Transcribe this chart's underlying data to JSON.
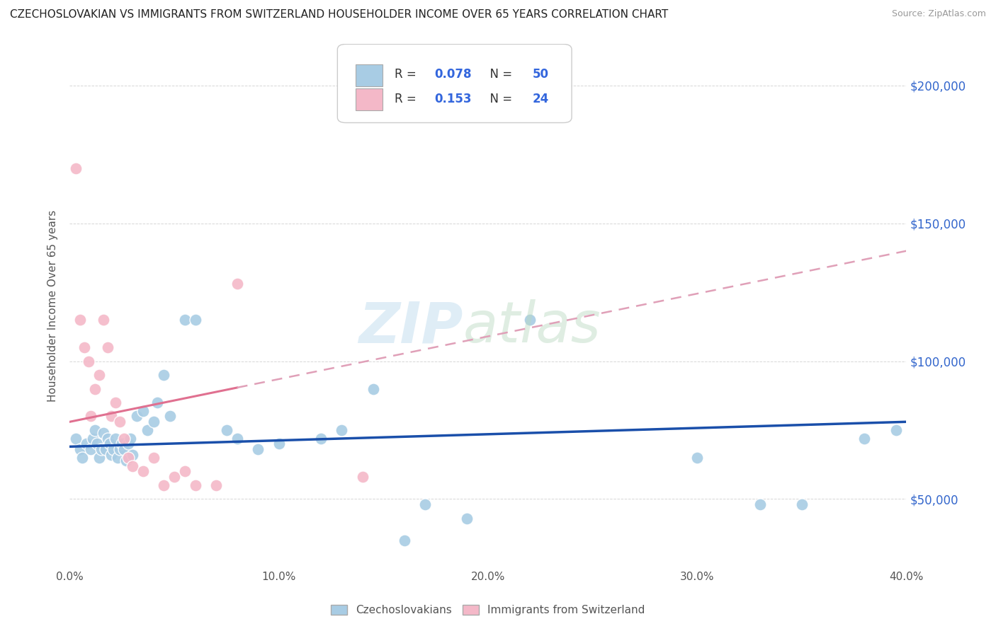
{
  "title": "CZECHOSLOVAKIAN VS IMMIGRANTS FROM SWITZERLAND HOUSEHOLDER INCOME OVER 65 YEARS CORRELATION CHART",
  "source": "Source: ZipAtlas.com",
  "ylabel": "Householder Income Over 65 years",
  "watermark_zip": "ZIP",
  "watermark_atlas": "atlas",
  "legend_blue_r": "0.078",
  "legend_blue_n": "50",
  "legend_pink_r": "0.153",
  "legend_pink_n": "24",
  "blue_color": "#a8cce4",
  "pink_color": "#f4b8c8",
  "blue_line_color": "#1a4faa",
  "pink_line_color": "#e07090",
  "pink_dash_color": "#e0a0b8",
  "blue_scatter_x": [
    0.3,
    0.5,
    0.6,
    0.8,
    1.0,
    1.1,
    1.2,
    1.3,
    1.4,
    1.5,
    1.6,
    1.7,
    1.8,
    1.9,
    2.0,
    2.1,
    2.2,
    2.3,
    2.4,
    2.5,
    2.6,
    2.7,
    2.8,
    2.9,
    3.0,
    3.2,
    3.5,
    3.7,
    4.0,
    4.2,
    4.5,
    4.8,
    5.5,
    6.0,
    7.5,
    8.0,
    9.0,
    10.0,
    12.0,
    13.0,
    14.5,
    16.0,
    17.0,
    19.0,
    22.0,
    30.0,
    33.0,
    35.0,
    38.0,
    39.5
  ],
  "blue_scatter_y": [
    72000,
    68000,
    65000,
    70000,
    68000,
    72000,
    75000,
    70000,
    65000,
    68000,
    74000,
    68000,
    72000,
    70000,
    66000,
    68000,
    72000,
    65000,
    68000,
    70000,
    68000,
    64000,
    70000,
    72000,
    66000,
    80000,
    82000,
    75000,
    78000,
    85000,
    95000,
    80000,
    115000,
    115000,
    75000,
    72000,
    68000,
    70000,
    72000,
    75000,
    90000,
    35000,
    48000,
    43000,
    115000,
    65000,
    48000,
    48000,
    72000,
    75000
  ],
  "pink_scatter_x": [
    0.3,
    0.5,
    0.7,
    0.9,
    1.0,
    1.2,
    1.4,
    1.6,
    1.8,
    2.0,
    2.2,
    2.4,
    2.6,
    2.8,
    3.0,
    3.5,
    4.0,
    4.5,
    5.0,
    5.5,
    6.0,
    7.0,
    8.0,
    14.0
  ],
  "pink_scatter_y": [
    170000,
    115000,
    105000,
    100000,
    80000,
    90000,
    95000,
    115000,
    105000,
    80000,
    85000,
    78000,
    72000,
    65000,
    62000,
    60000,
    65000,
    55000,
    58000,
    60000,
    55000,
    55000,
    128000,
    58000
  ]
}
